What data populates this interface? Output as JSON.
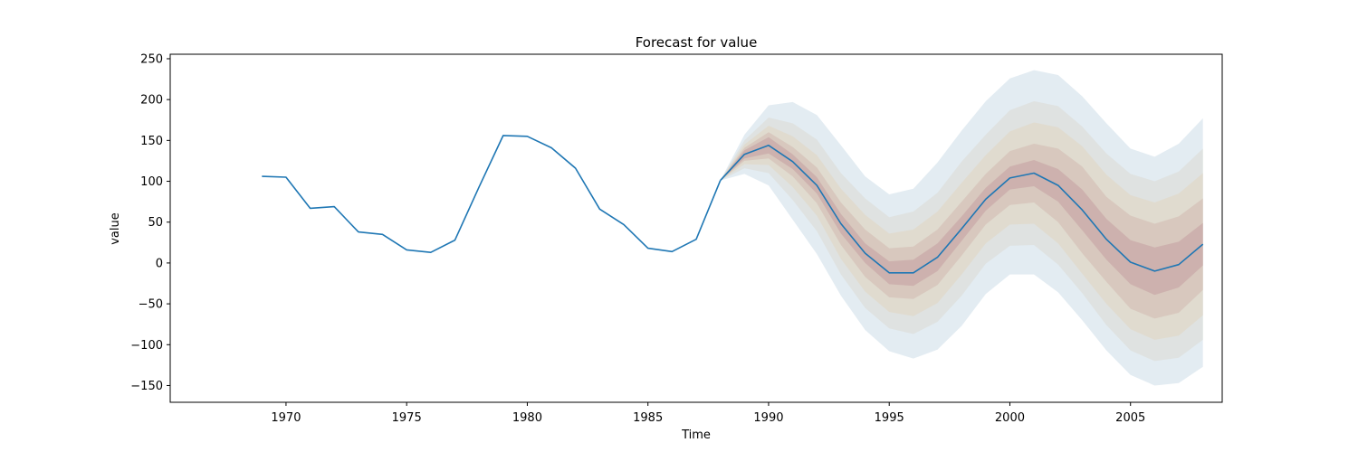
{
  "chart_data": {
    "type": "line",
    "title": "Forecast for value",
    "xlabel": "Time",
    "ylabel": "value",
    "xlim": [
      1965.2,
      2008.8
    ],
    "ylim": [
      -170.5,
      255.5
    ],
    "x_ticks": [
      "1970",
      "1975",
      "1980",
      "1985",
      "1990",
      "1995",
      "2000",
      "2005"
    ],
    "y_ticks": [
      "250",
      "200",
      "150",
      "100",
      "50",
      "0",
      "−50",
      "−100",
      "−150"
    ],
    "grid": false,
    "colors": {
      "line": "#1f77b4",
      "band_outer": "#d9e6ee",
      "band_mid": "#e0d8c8",
      "band_inner": "#c9aaa8"
    },
    "series": [
      {
        "x": [
          1969,
          1970,
          1971,
          1972,
          1973,
          1974,
          1975,
          1976,
          1977,
          1978,
          1979,
          1980,
          1981,
          1982,
          1983,
          1984,
          1985,
          1986,
          1987,
          1988
        ],
        "values": [
          106,
          105,
          67,
          69,
          38,
          35,
          16,
          13,
          28,
          93,
          156,
          155,
          141,
          116,
          66,
          47,
          18,
          14,
          29,
          101
        ]
      }
    ],
    "forecast": {
      "x": [
        1988,
        1989,
        1990,
        1991,
        1992,
        1993,
        1994,
        1995,
        1996,
        1997,
        1998,
        1999,
        2000,
        2001,
        2002,
        2003,
        2004,
        2005,
        2006,
        2007,
        2008
      ],
      "mean": [
        101,
        133,
        144,
        124,
        95,
        48,
        12,
        -12,
        -12,
        7,
        42,
        78,
        104,
        110,
        95,
        65,
        29,
        1,
        -10,
        -2,
        23
      ],
      "bands": [
        {
          "lower": [
            101,
            109,
            95,
            53,
            11,
            -40,
            -82,
            -108,
            -117,
            -106,
            -77,
            -38,
            -14,
            -14,
            -36,
            -70,
            -107,
            -137,
            -150,
            -147,
            -127
          ],
          "upper": [
            101,
            157,
            193,
            197,
            181,
            144,
            106,
            84,
            91,
            123,
            162,
            198,
            226,
            236,
            230,
            204,
            171,
            140,
            130,
            146,
            177
          ]
        },
        {
          "lower": [
            101,
            116,
            110,
            77,
            39,
            -14,
            -55,
            -80,
            -87,
            -72,
            -40,
            -1,
            21,
            22,
            -2,
            -37,
            -76,
            -107,
            -120,
            -116,
            -94
          ]
        },
        {
          "lower": [
            101,
            121,
            120,
            93,
            58,
            5,
            -35,
            -60,
            -65,
            -49,
            -14,
            24,
            47,
            48,
            24,
            -13,
            -50,
            -81,
            -94,
            -89,
            -64
          ]
        },
        {
          "lower": [
            101,
            125,
            128,
            106,
            73,
            22,
            -17,
            -42,
            -44,
            -27,
            9,
            47,
            71,
            74,
            50,
            12,
            -23,
            -56,
            -68,
            -61,
            -33
          ]
        },
        {
          "lower": [
            101,
            128,
            134,
            115,
            85,
            36,
            0,
            -26,
            -28,
            -10,
            27,
            64,
            90,
            94,
            75,
            40,
            4,
            -26,
            -39,
            -30,
            -3
          ]
        }
      ]
    }
  }
}
